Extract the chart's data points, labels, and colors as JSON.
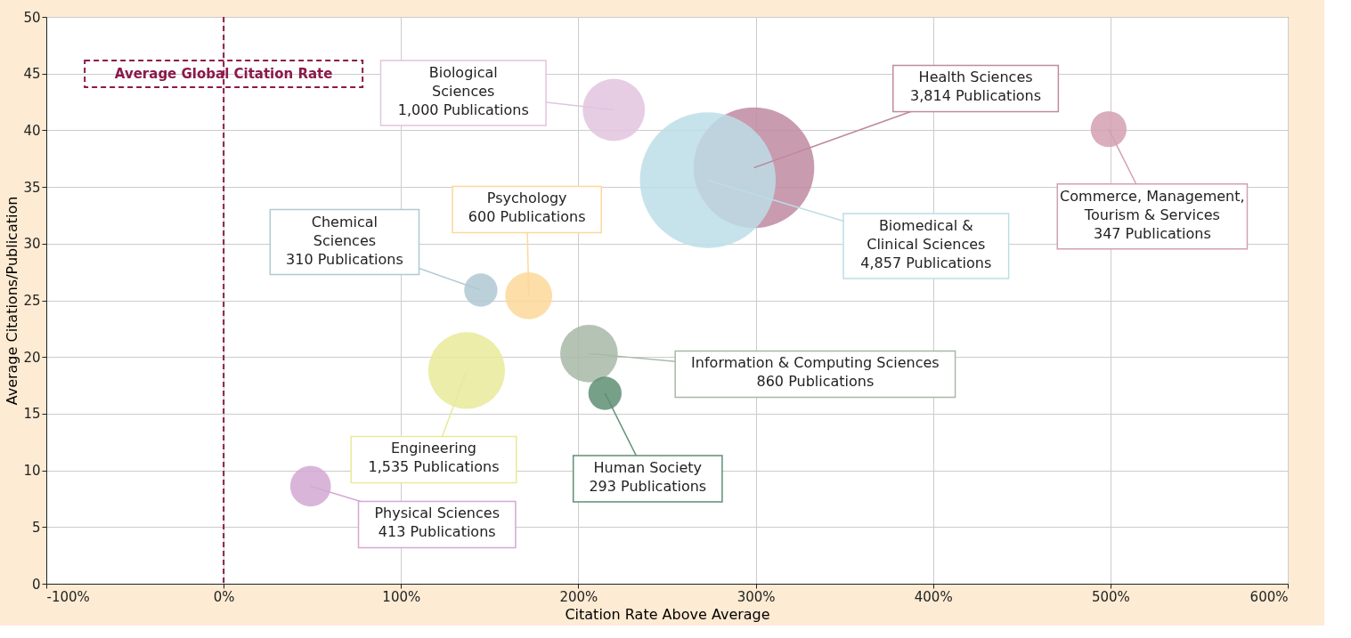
{
  "chart_data": {
    "type": "bubble",
    "xlabel": "Citation Rate Above Average",
    "ylabel": "Average Citations/Publication",
    "xlim": [
      -100,
      600
    ],
    "ylim": [
      0,
      50
    ],
    "xticks": [
      {
        "value": -100,
        "label": "-100%"
      },
      {
        "value": 0,
        "label": "0%"
      },
      {
        "value": 100,
        "label": "100%"
      },
      {
        "value": 200,
        "label": "200%"
      },
      {
        "value": 300,
        "label": "300%"
      },
      {
        "value": 400,
        "label": "400%"
      },
      {
        "value": 500,
        "label": "500%"
      },
      {
        "value": 600,
        "label": "600%"
      }
    ],
    "yticks": [
      0,
      5,
      10,
      15,
      20,
      25,
      30,
      35,
      40,
      45,
      50
    ],
    "grid": true,
    "series": [
      {
        "x": [
          220,
          299,
          273,
          499,
          145,
          172,
          137,
          206,
          215,
          49
        ],
        "values": [
          41.8,
          36.7,
          35.6,
          40.1,
          25.9,
          25.4,
          18.8,
          20.3,
          16.8,
          8.6
        ],
        "sizes": [
          0.21,
          0.79,
          1,
          0.07,
          0.06,
          0.12,
          0.32,
          0.18,
          0.06,
          0.09
        ],
        "colors": [
          "#e2c4df",
          "#c08aa0",
          "#bcdde6",
          "#d4a0b0",
          "#b0c8d4",
          "#fdd89a",
          "#e8ea9a",
          "#a8b8a8",
          "#5f8f74",
          "#d4a8d4"
        ]
      }
    ],
    "annotations": [
      {
        "text": "Biological\nSciences\n1,000 Publications",
        "x": 220,
        "y": 41.8
      },
      {
        "text": "Health Sciences\n3,814 Publications",
        "x": 299,
        "y": 36.7
      },
      {
        "text": "Biomedical &\nClinical Sciences\n4,857 Publications",
        "x": 273,
        "y": 35.6
      },
      {
        "text": "Commerce, Management,\nTourism & Services\n347 Publications",
        "x": 499,
        "y": 40.1
      },
      {
        "text": "Chemical\nSciences\n310 Publications",
        "x": 145,
        "y": 25.9
      },
      {
        "text": "Psychology\n600 Publications",
        "x": 172,
        "y": 25.4
      },
      {
        "text": "Engineering\n1,535 Publications",
        "x": 137,
        "y": 18.8
      },
      {
        "text": "Information & Computing Sciences\n860 Publications",
        "x": 206,
        "y": 20.3
      },
      {
        "text": "Human Society\n293 Publications",
        "x": 215,
        "y": 16.8
      },
      {
        "text": "Physical Sciences\n413 Publications",
        "x": 49,
        "y": 8.6
      }
    ],
    "ref_lines": [
      {
        "axis": "x",
        "value": 0,
        "label": "Average Global Citation Rate",
        "color": "#8b1a4a",
        "line_style": "dashed"
      }
    ]
  }
}
